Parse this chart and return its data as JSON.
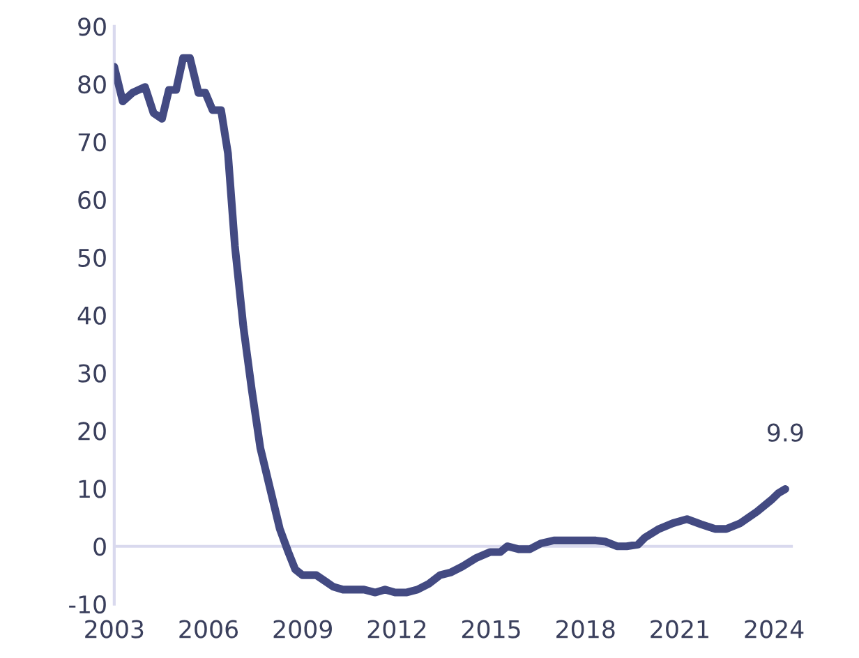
{
  "chart_data": {
    "type": "line",
    "x": [
      2003.0,
      2003.27,
      2003.58,
      2003.98,
      2004.25,
      2004.52,
      2004.74,
      2004.97,
      2005.19,
      2005.41,
      2005.68,
      2005.9,
      2006.13,
      2006.4,
      2006.62,
      2006.84,
      2007.11,
      2007.38,
      2007.65,
      2007.96,
      2008.27,
      2008.54,
      2008.76,
      2008.99,
      2009.21,
      2009.43,
      2009.7,
      2009.97,
      2010.28,
      2010.6,
      2010.95,
      2011.31,
      2011.62,
      2011.94,
      2012.29,
      2012.65,
      2013.01,
      2013.37,
      2013.72,
      2014.08,
      2014.53,
      2014.97,
      2015.29,
      2015.51,
      2015.87,
      2016.23,
      2016.58,
      2016.99,
      2017.43,
      2017.75,
      2018.01,
      2018.33,
      2018.64,
      2019.0,
      2019.31,
      2019.67,
      2019.89,
      2020.34,
      2020.78,
      2021.23,
      2021.68,
      2022.12,
      2022.48,
      2022.93,
      2023.46,
      2023.91,
      2024.14,
      2024.36
    ],
    "series": [
      {
        "color": "#434a82",
        "values": [
          83,
          77,
          78.5,
          79.5,
          75,
          74,
          79,
          79,
          84.5,
          84.5,
          78.5,
          78.5,
          75.5,
          75.5,
          68,
          52,
          38,
          27,
          17,
          10,
          3,
          -1,
          -4,
          -5,
          -5,
          -5,
          -6,
          -7,
          -7.5,
          -7.5,
          -7.5,
          -8,
          -7.5,
          -8,
          -8,
          -7.5,
          -6.5,
          -5,
          -4.5,
          -3.5,
          -2,
          -1,
          -1,
          0,
          -0.5,
          -0.5,
          0.5,
          1,
          1,
          1,
          1,
          1,
          0.8,
          0,
          0,
          0.3,
          1.5,
          3,
          4,
          4.7,
          3.8,
          3,
          3,
          4,
          6,
          8,
          9.2,
          9.9
        ]
      }
    ],
    "xlim": [
      2003,
      2024.6
    ],
    "xticks": [
      2003,
      2006,
      2009,
      2012,
      2015,
      2018,
      2021,
      2024
    ],
    "ylim": [
      -10,
      90
    ],
    "yticks": [
      {
        "value": -10,
        "label": "-10"
      },
      0,
      10,
      20,
      30,
      40,
      50,
      60,
      70,
      80,
      90
    ],
    "ref_lines": [
      {
        "axis": "y",
        "value": 0,
        "color": "#d9d9ee"
      }
    ],
    "annotations": [
      {
        "text": "9.9",
        "x": 2024.36,
        "y": 9.9
      }
    ],
    "grid": false,
    "legend": false
  }
}
